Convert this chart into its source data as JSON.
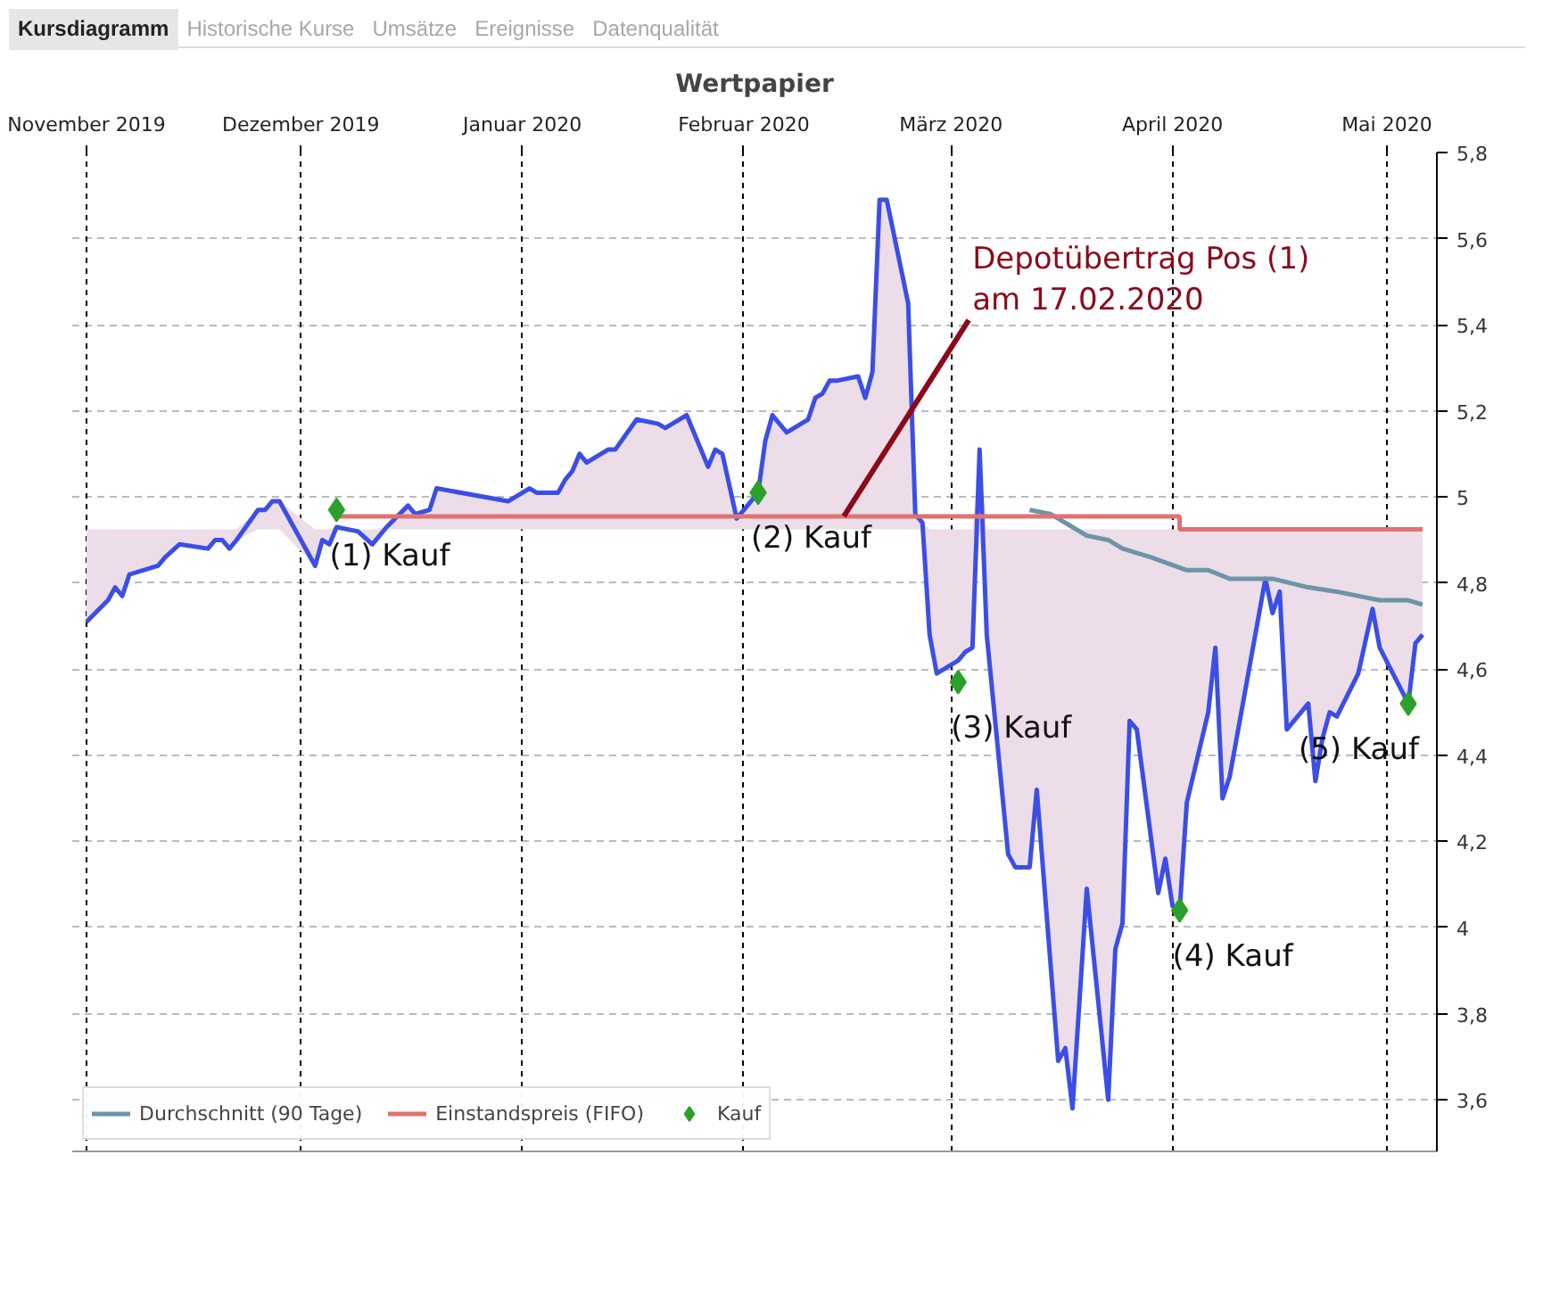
{
  "chart_data": {
    "type": "line",
    "title": "Wertpapier",
    "xlim": [
      "2019-10-30",
      "2020-05-08"
    ],
    "xticks": [
      {
        "value": "2019-11-01",
        "label": "November 2019"
      },
      {
        "value": "2019-12-01",
        "label": "Dezember 2019"
      },
      {
        "value": "2020-01-01",
        "label": "Januar 2020"
      },
      {
        "value": "2020-02-01",
        "label": "Februar 2020"
      },
      {
        "value": "2020-03-01",
        "label": "März 2020"
      },
      {
        "value": "2020-04-01",
        "label": "April 2020"
      },
      {
        "value": "2020-05-01",
        "label": "Mai 2020"
      }
    ],
    "ylim": [
      3.48,
      5.8
    ],
    "yticks": [
      {
        "value": 3.6,
        "label": "3,6"
      },
      {
        "value": 3.8,
        "label": "3,8"
      },
      4,
      {
        "value": 4.2,
        "label": "4,2"
      },
      {
        "value": 4.4,
        "label": "4,4"
      },
      {
        "value": 4.6,
        "label": "4,6"
      },
      {
        "value": 4.8,
        "label": "4,8"
      },
      5,
      {
        "value": 5.2,
        "label": "5,2"
      },
      {
        "value": 5.4,
        "label": "5,4"
      },
      {
        "value": 5.6,
        "label": "5,6"
      },
      {
        "value": 5.8,
        "label": "5,8"
      }
    ],
    "grid": true,
    "legend": "bottom left",
    "series": [
      {
        "color": "#3b4ee6",
        "x": [
          "2019-11-01",
          "2019-11-04",
          "2019-11-05",
          "2019-11-06",
          "2019-11-07",
          "2019-11-11",
          "2019-11-12",
          "2019-11-14",
          "2019-11-18",
          "2019-11-19",
          "2019-11-20",
          "2019-11-21",
          "2019-11-22",
          "2019-11-25",
          "2019-11-26",
          "2019-11-27",
          "2019-11-28",
          "2019-12-03",
          "2019-12-04",
          "2019-12-05",
          "2019-12-06",
          "2019-12-09",
          "2019-12-11",
          "2019-12-13",
          "2019-12-16",
          "2019-12-17",
          "2019-12-19",
          "2019-12-20",
          "2019-12-30",
          "2020-01-02",
          "2020-01-03",
          "2020-01-06",
          "2020-01-07",
          "2020-01-08",
          "2020-01-09",
          "2020-01-10",
          "2020-01-13",
          "2020-01-14",
          "2020-01-17",
          "2020-01-20",
          "2020-01-21",
          "2020-01-22",
          "2020-01-24",
          "2020-01-27",
          "2020-01-28",
          "2020-01-29",
          "2020-01-31",
          "2020-02-03",
          "2020-02-04",
          "2020-02-05",
          "2020-02-07",
          "2020-02-10",
          "2020-02-11",
          "2020-02-12",
          "2020-02-13",
          "2020-02-14",
          "2020-02-17",
          "2020-02-18",
          "2020-02-19",
          "2020-02-20",
          "2020-02-21",
          "2020-02-24",
          "2020-02-25",
          "2020-02-26",
          "2020-02-27",
          "2020-02-28",
          "2020-03-02",
          "2020-03-03",
          "2020-03-04",
          "2020-03-05",
          "2020-03-06",
          "2020-03-09",
          "2020-03-10",
          "2020-03-12",
          "2020-03-13",
          "2020-03-16",
          "2020-03-17",
          "2020-03-18",
          "2020-03-20",
          "2020-03-23",
          "2020-03-24",
          "2020-03-25",
          "2020-03-26",
          "2020-03-27",
          "2020-03-30",
          "2020-03-31",
          "2020-04-01",
          "2020-04-02",
          "2020-04-03",
          "2020-04-06",
          "2020-04-07",
          "2020-04-08",
          "2020-04-09",
          "2020-04-14",
          "2020-04-15",
          "2020-04-16",
          "2020-04-17",
          "2020-04-20",
          "2020-04-21",
          "2020-04-22",
          "2020-04-23",
          "2020-04-24",
          "2020-04-27",
          "2020-04-29",
          "2020-04-30",
          "2020-05-04",
          "2020-05-05",
          "2020-05-06"
        ],
        "values": [
          4.71,
          4.76,
          4.79,
          4.77,
          4.82,
          4.84,
          4.86,
          4.89,
          4.88,
          4.9,
          4.9,
          4.88,
          4.9,
          4.97,
          4.97,
          4.99,
          4.99,
          4.84,
          4.9,
          4.89,
          4.93,
          4.92,
          4.89,
          4.93,
          4.98,
          4.96,
          4.97,
          5.02,
          4.99,
          5.02,
          5.01,
          5.01,
          5.04,
          5.06,
          5.1,
          5.08,
          5.11,
          5.11,
          5.18,
          5.17,
          5.16,
          5.17,
          5.19,
          5.07,
          5.11,
          5.1,
          4.95,
          5.01,
          5.13,
          5.19,
          5.15,
          5.18,
          5.23,
          5.24,
          5.27,
          5.27,
          5.28,
          5.23,
          5.29,
          5.69,
          5.69,
          5.45,
          4.96,
          4.94,
          4.68,
          4.59,
          4.62,
          4.64,
          4.65,
          5.11,
          4.68,
          4.17,
          4.14,
          4.14,
          4.32,
          3.69,
          3.72,
          3.58,
          4.09,
          3.6,
          3.95,
          4.01,
          4.48,
          4.46,
          4.08,
          4.16,
          4.05,
          4.04,
          4.29,
          4.5,
          4.65,
          4.3,
          4.35,
          4.81,
          4.73,
          4.78,
          4.46,
          4.52,
          4.34,
          4.44,
          4.5,
          4.49,
          4.59,
          4.74,
          4.65,
          4.52,
          4.66,
          4.68
        ],
        "lower": [
          4.71,
          4.76,
          4.79,
          4.77,
          4.82,
          4.84,
          4.86,
          4.89,
          4.88,
          4.9,
          4.9,
          4.88,
          4.9,
          4.925,
          4.925,
          4.925,
          4.925,
          4.84,
          4.9,
          4.89,
          4.925,
          4.92,
          4.89,
          4.925,
          4.925,
          4.925,
          4.925,
          4.925,
          4.925,
          4.925,
          4.925,
          4.925,
          4.925,
          4.925,
          4.925,
          4.925,
          4.925,
          4.925,
          4.925,
          4.925,
          4.925,
          4.925,
          4.925,
          4.925,
          4.925,
          4.925,
          4.925,
          4.925,
          4.925,
          4.925,
          4.925,
          4.925,
          4.925,
          4.925,
          4.925,
          4.925,
          4.925,
          4.925,
          4.925,
          4.925,
          4.925,
          4.925,
          4.925,
          4.925,
          4.68,
          4.59,
          4.62,
          4.64,
          4.65,
          4.925,
          4.68,
          4.17,
          4.14,
          4.14,
          4.32,
          3.69,
          3.72,
          3.58,
          4.09,
          3.6,
          3.95,
          4.01,
          4.48,
          4.46,
          4.08,
          4.16,
          4.05,
          4.04,
          4.29,
          4.5,
          4.65,
          4.3,
          4.35,
          4.81,
          4.73,
          4.78,
          4.46,
          4.52,
          4.34,
          4.44,
          4.5,
          4.49,
          4.59,
          4.74,
          4.65,
          4.52,
          4.66,
          4.68
        ],
        "upper": [
          4.925,
          4.925,
          4.925,
          4.925,
          4.925,
          4.925,
          4.925,
          4.925,
          4.925,
          4.925,
          4.925,
          4.925,
          4.925,
          4.97,
          4.97,
          4.99,
          4.99,
          4.925,
          4.925,
          4.925,
          4.93,
          4.925,
          4.925,
          4.93,
          4.98,
          4.96,
          4.97,
          5.02,
          4.99,
          5.02,
          5.01,
          5.01,
          5.04,
          5.06,
          5.1,
          5.08,
          5.11,
          5.11,
          5.18,
          5.17,
          5.16,
          5.17,
          5.19,
          5.07,
          5.11,
          5.1,
          4.95,
          5.01,
          5.13,
          5.19,
          5.15,
          5.18,
          5.23,
          5.24,
          5.27,
          5.27,
          5.28,
          5.23,
          5.29,
          5.69,
          5.69,
          5.45,
          4.96,
          4.94,
          4.925,
          4.925,
          4.925,
          4.925,
          4.925,
          5.11,
          4.925,
          4.925,
          4.925,
          4.925,
          4.925,
          4.925,
          4.925,
          4.925,
          4.925,
          4.925,
          4.925,
          4.925,
          4.925,
          4.925,
          4.925,
          4.925,
          4.925,
          4.925,
          4.925,
          4.925,
          4.925,
          4.925,
          4.925,
          4.925,
          4.925,
          4.925,
          4.925,
          4.925,
          4.925,
          4.925,
          4.925,
          4.925,
          4.925,
          4.925,
          4.925,
          4.925,
          4.925,
          4.925
        ]
      },
      {
        "name": "Durchschnitt (90 Tage)",
        "type": "line",
        "color": "#6c95a6",
        "x": [
          "2020-03-12",
          "2020-03-15",
          "2020-03-18",
          "2020-03-20",
          "2020-03-23",
          "2020-03-25",
          "2020-03-29",
          "2020-04-03",
          "2020-04-06",
          "2020-04-09",
          "2020-04-15",
          "2020-04-20",
          "2020-04-24",
          "2020-04-30",
          "2020-05-04",
          "2020-05-06"
        ],
        "values": [
          4.97,
          4.96,
          4.93,
          4.91,
          4.9,
          4.88,
          4.86,
          4.83,
          4.83,
          4.81,
          4.81,
          4.79,
          4.78,
          4.76,
          4.76,
          4.75
        ]
      },
      {
        "name": "Einstandspreis (FIFO)",
        "type": "step",
        "color": "#e07272",
        "x": [
          "2019-12-06",
          "2020-04-02",
          "2020-05-06"
        ],
        "values": [
          4.955,
          4.925,
          4.925
        ]
      },
      {
        "name": "Kauf",
        "type": "scatter",
        "marker": "diamond",
        "color": "#2ca02c",
        "x": [
          "2019-12-06",
          "2020-02-03",
          "2020-03-02",
          "2020-04-02",
          "2020-05-04"
        ],
        "values": [
          4.97,
          5.01,
          4.57,
          4.04,
          4.52
        ]
      }
    ],
    "annotations": [
      "Kursdiagramm",
      "Historische Kurse",
      "Umsätze",
      "Ereignisse",
      "Datenqualität",
      {
        "text": "Depotübertrag Pos (1)\nam 17.02.2020",
        "x": "2020-02-15",
        "y": 4.955
      },
      {
        "text": "(1) Kauf",
        "x": "2019-12-06",
        "y": 4.97
      },
      {
        "text": "(2) Kauf",
        "x": "2020-02-03",
        "y": 5.01
      },
      {
        "text": "(3) Kauf",
        "x": "2020-03-02",
        "y": 4.57
      },
      {
        "text": "(4) Kauf",
        "x": "2020-04-02",
        "y": 4.04
      },
      {
        "text": "(5) Kauf",
        "x": "2020-05-04",
        "y": 4.52
      }
    ]
  }
}
